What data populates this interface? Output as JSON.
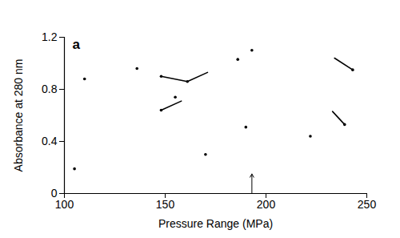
{
  "chart_data": {
    "type": "scatter",
    "panel_label": "a",
    "x_label": "Pressure Range (MPa)",
    "y_label": "Absorbance at 280 nm",
    "color": "#000000",
    "marker": "dot",
    "points": [
      {
        "x": 105,
        "y": 0.19
      },
      {
        "x": 110,
        "y": 0.88
      },
      {
        "x": 136,
        "y": 0.96
      },
      {
        "x": 148,
        "y": 0.9
      },
      {
        "x": 161,
        "y": 0.86
      },
      {
        "x": 148,
        "y": 0.64
      },
      {
        "x": 155,
        "y": 0.74
      },
      {
        "x": 170,
        "y": 0.3
      },
      {
        "x": 186,
        "y": 1.03
      },
      {
        "x": 190,
        "y": 0.51
      },
      {
        "x": 193,
        "y": 1.1
      },
      {
        "x": 222,
        "y": 0.44
      },
      {
        "x": 243,
        "y": 0.95
      },
      {
        "x": 239,
        "y": 0.53
      }
    ],
    "segments": [
      {
        "x": [
          148,
          161
        ],
        "y": [
          0.9,
          0.86
        ]
      },
      {
        "x": [
          161,
          171
        ],
        "y": [
          0.86,
          0.93
        ]
      },
      {
        "x": [
          148,
          158
        ],
        "y": [
          0.64,
          0.71
        ]
      },
      {
        "x": [
          234,
          243
        ],
        "y": [
          1.04,
          0.95
        ]
      },
      {
        "x": [
          233,
          239
        ],
        "y": [
          0.63,
          0.53
        ]
      }
    ],
    "annotations": [
      {
        "type": "arrow",
        "x": 193,
        "y1": 0,
        "y2": 0.15
      }
    ],
    "xlim": [
      100,
      250
    ],
    "xticks": [
      100,
      150,
      200,
      250
    ],
    "ylim": [
      0,
      1.2
    ],
    "yticks": [
      0,
      0.4,
      0.8,
      1.2
    ],
    "grid": false
  }
}
